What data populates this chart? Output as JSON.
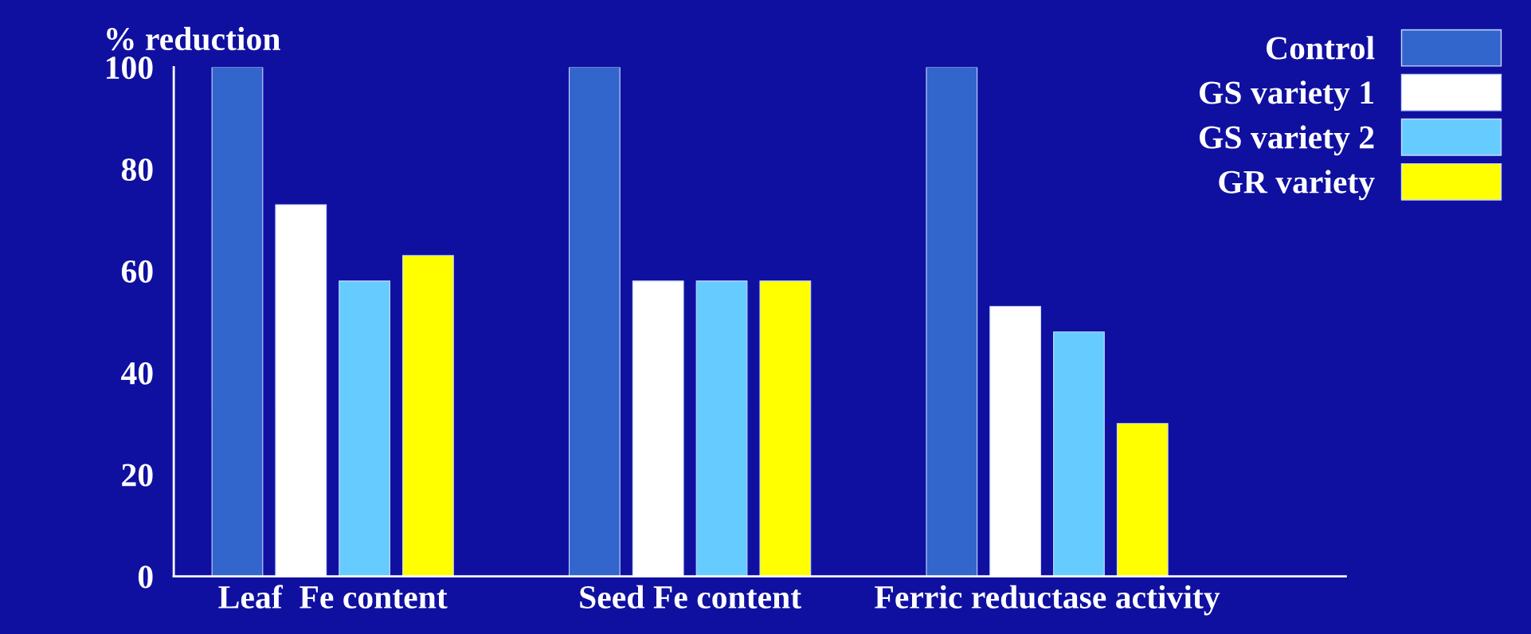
{
  "chart_data": {
    "type": "bar",
    "ylabel": "% reduction",
    "categories": [
      "Leaf  Fe content",
      "Seed Fe content",
      "Ferric reductase activity"
    ],
    "series": [
      {
        "name": "Control",
        "color": "#3366cc",
        "values": [
          100,
          100,
          100
        ]
      },
      {
        "name": "GS variety 1",
        "color": "#ffffff",
        "values": [
          73,
          58,
          53
        ]
      },
      {
        "name": "GS variety 2",
        "color": "#66ccff",
        "values": [
          58,
          58,
          48
        ]
      },
      {
        "name": "GR variety",
        "color": "#ffff00",
        "values": [
          63,
          58,
          30
        ]
      }
    ],
    "ylim": [
      0,
      100
    ],
    "yticks": [
      0,
      20,
      40,
      60,
      80,
      100
    ],
    "grid": false,
    "legend": "top right"
  }
}
